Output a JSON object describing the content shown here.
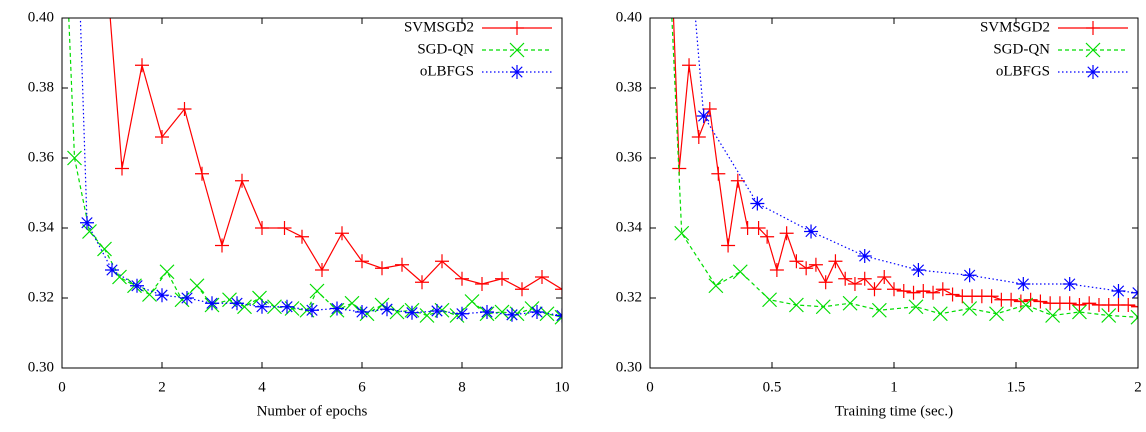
{
  "chart_data": [
    {
      "type": "line",
      "xlabel": "Number of epochs",
      "xlim": [
        0,
        10
      ],
      "ylim": [
        0.3,
        0.4
      ],
      "xticks": [
        0,
        2,
        4,
        6,
        8,
        10
      ],
      "yticks": [
        {
          "value": 0.3,
          "label": "0.30"
        },
        0.32,
        0.34,
        0.36,
        0.38,
        {
          "value": 0.4,
          "label": "0.40"
        }
      ],
      "legend": "top-right",
      "series": [
        {
          "name": "SVMSGD2",
          "color": "#ff0000",
          "dash": "solid",
          "marker": "plus",
          "x": [
            0.8,
            1.2,
            1.6,
            2.0,
            2.45,
            2.8,
            3.2,
            3.6,
            4.0,
            4.45,
            4.8,
            5.2,
            5.6,
            6.0,
            6.4,
            6.8,
            7.2,
            7.6,
            8.0,
            8.4,
            8.8,
            9.2,
            9.6,
            10
          ],
          "values": [
            0.43,
            0.357,
            0.3865,
            0.366,
            0.374,
            0.3555,
            0.335,
            0.3535,
            0.34,
            0.34,
            0.3375,
            0.328,
            0.3385,
            0.3305,
            0.3285,
            0.3295,
            0.3245,
            0.3305,
            0.3255,
            0.324,
            0.3255,
            0.3225,
            0.326,
            0.3225
          ]
        },
        {
          "name": "SGD-QN",
          "color": "#00dd00",
          "dash": "dashed",
          "marker": "cross",
          "x": [
            0.05,
            0.25,
            0.55,
            0.85,
            1.15,
            1.45,
            1.75,
            2.1,
            2.4,
            2.7,
            3.0,
            3.35,
            3.65,
            3.95,
            4.25,
            4.6,
            4.9,
            5.1,
            5.5,
            5.8,
            6.1,
            6.4,
            6.7,
            7.0,
            7.3,
            7.6,
            7.9,
            8.2,
            8.5,
            8.8,
            9.1,
            9.4,
            9.7,
            10
          ],
          "values": [
            0.43,
            0.36,
            0.339,
            0.334,
            0.326,
            0.3235,
            0.321,
            0.3275,
            0.3195,
            0.3235,
            0.318,
            0.3195,
            0.3175,
            0.32,
            0.3175,
            0.317,
            0.3165,
            0.322,
            0.3165,
            0.3185,
            0.3155,
            0.318,
            0.316,
            0.3165,
            0.315,
            0.3165,
            0.315,
            0.319,
            0.3155,
            0.316,
            0.3155,
            0.317,
            0.3155,
            0.3145
          ]
        },
        {
          "name": "oLBFGS",
          "color": "#0000ff",
          "dash": "dotted",
          "marker": "star",
          "x": [
            0.3,
            0.5,
            1.0,
            1.5,
            2.0,
            2.5,
            3.0,
            3.5,
            4.0,
            4.5,
            5.0,
            5.5,
            6.0,
            6.5,
            7.0,
            7.5,
            8.0,
            8.5,
            9.0,
            9.5,
            10
          ],
          "values": [
            0.43,
            0.3415,
            0.328,
            0.3235,
            0.3208,
            0.32,
            0.3185,
            0.3185,
            0.3175,
            0.3175,
            0.3165,
            0.317,
            0.316,
            0.3168,
            0.3158,
            0.3163,
            0.3155,
            0.316,
            0.3152,
            0.316,
            0.315
          ]
        }
      ]
    },
    {
      "type": "line",
      "xlabel": "Training time (sec.)",
      "xlim": [
        0,
        2
      ],
      "ylim": [
        0.3,
        0.4
      ],
      "xticks": [
        0,
        0.5,
        1,
        1.5,
        2
      ],
      "yticks": [
        {
          "value": 0.3,
          "label": "0.30"
        },
        0.32,
        0.34,
        0.36,
        0.38,
        {
          "value": 0.4,
          "label": "0.40"
        }
      ],
      "legend": "top-right",
      "series": [
        {
          "name": "SVMSGD2",
          "color": "#ff0000",
          "dash": "solid",
          "marker": "plus",
          "x": [
            0.08,
            0.12,
            0.16,
            0.2,
            0.245,
            0.28,
            0.32,
            0.36,
            0.4,
            0.445,
            0.48,
            0.52,
            0.56,
            0.6,
            0.64,
            0.68,
            0.72,
            0.76,
            0.8,
            0.84,
            0.88,
            0.92,
            0.96,
            1.0,
            1.04,
            1.08,
            1.12,
            1.16,
            1.2,
            1.24,
            1.28,
            1.32,
            1.36,
            1.4,
            1.44,
            1.48,
            1.52,
            1.56,
            1.6,
            1.64,
            1.68,
            1.72,
            1.76,
            1.8,
            1.84,
            1.88,
            1.92,
            1.96,
            2.0
          ],
          "values": [
            0.43,
            0.357,
            0.3865,
            0.366,
            0.374,
            0.3555,
            0.335,
            0.3535,
            0.34,
            0.34,
            0.3375,
            0.328,
            0.3385,
            0.3305,
            0.3285,
            0.3295,
            0.3245,
            0.3305,
            0.3255,
            0.324,
            0.3255,
            0.3225,
            0.326,
            0.3225,
            0.322,
            0.3215,
            0.322,
            0.3215,
            0.3225,
            0.321,
            0.3205,
            0.3205,
            0.3205,
            0.3205,
            0.3195,
            0.3195,
            0.319,
            0.3195,
            0.319,
            0.3185,
            0.3185,
            0.3185,
            0.318,
            0.3185,
            0.318,
            0.318,
            0.318,
            0.318,
            0.3175
          ]
        },
        {
          "name": "SGD-QN",
          "color": "#00dd00",
          "dash": "dashed",
          "marker": "cross",
          "x": [
            0.07,
            0.13,
            0.27,
            0.37,
            0.49,
            0.6,
            0.71,
            0.82,
            0.94,
            1.09,
            1.19,
            1.31,
            1.42,
            1.54,
            1.65,
            1.76,
            1.88,
            2.0
          ],
          "values": [
            0.43,
            0.3385,
            0.3235,
            0.3275,
            0.3195,
            0.318,
            0.3175,
            0.3185,
            0.3165,
            0.3175,
            0.3155,
            0.317,
            0.3155,
            0.318,
            0.315,
            0.316,
            0.315,
            0.3145
          ]
        },
        {
          "name": "oLBFGS",
          "color": "#0000ff",
          "dash": "dotted",
          "marker": "star",
          "x": [
            0.15,
            0.22,
            0.44,
            0.66,
            0.88,
            1.1,
            1.31,
            1.53,
            1.72,
            1.92,
            2.0
          ],
          "values": [
            0.43,
            0.372,
            0.347,
            0.339,
            0.332,
            0.328,
            0.3265,
            0.324,
            0.324,
            0.322,
            0.3215
          ]
        }
      ]
    }
  ]
}
